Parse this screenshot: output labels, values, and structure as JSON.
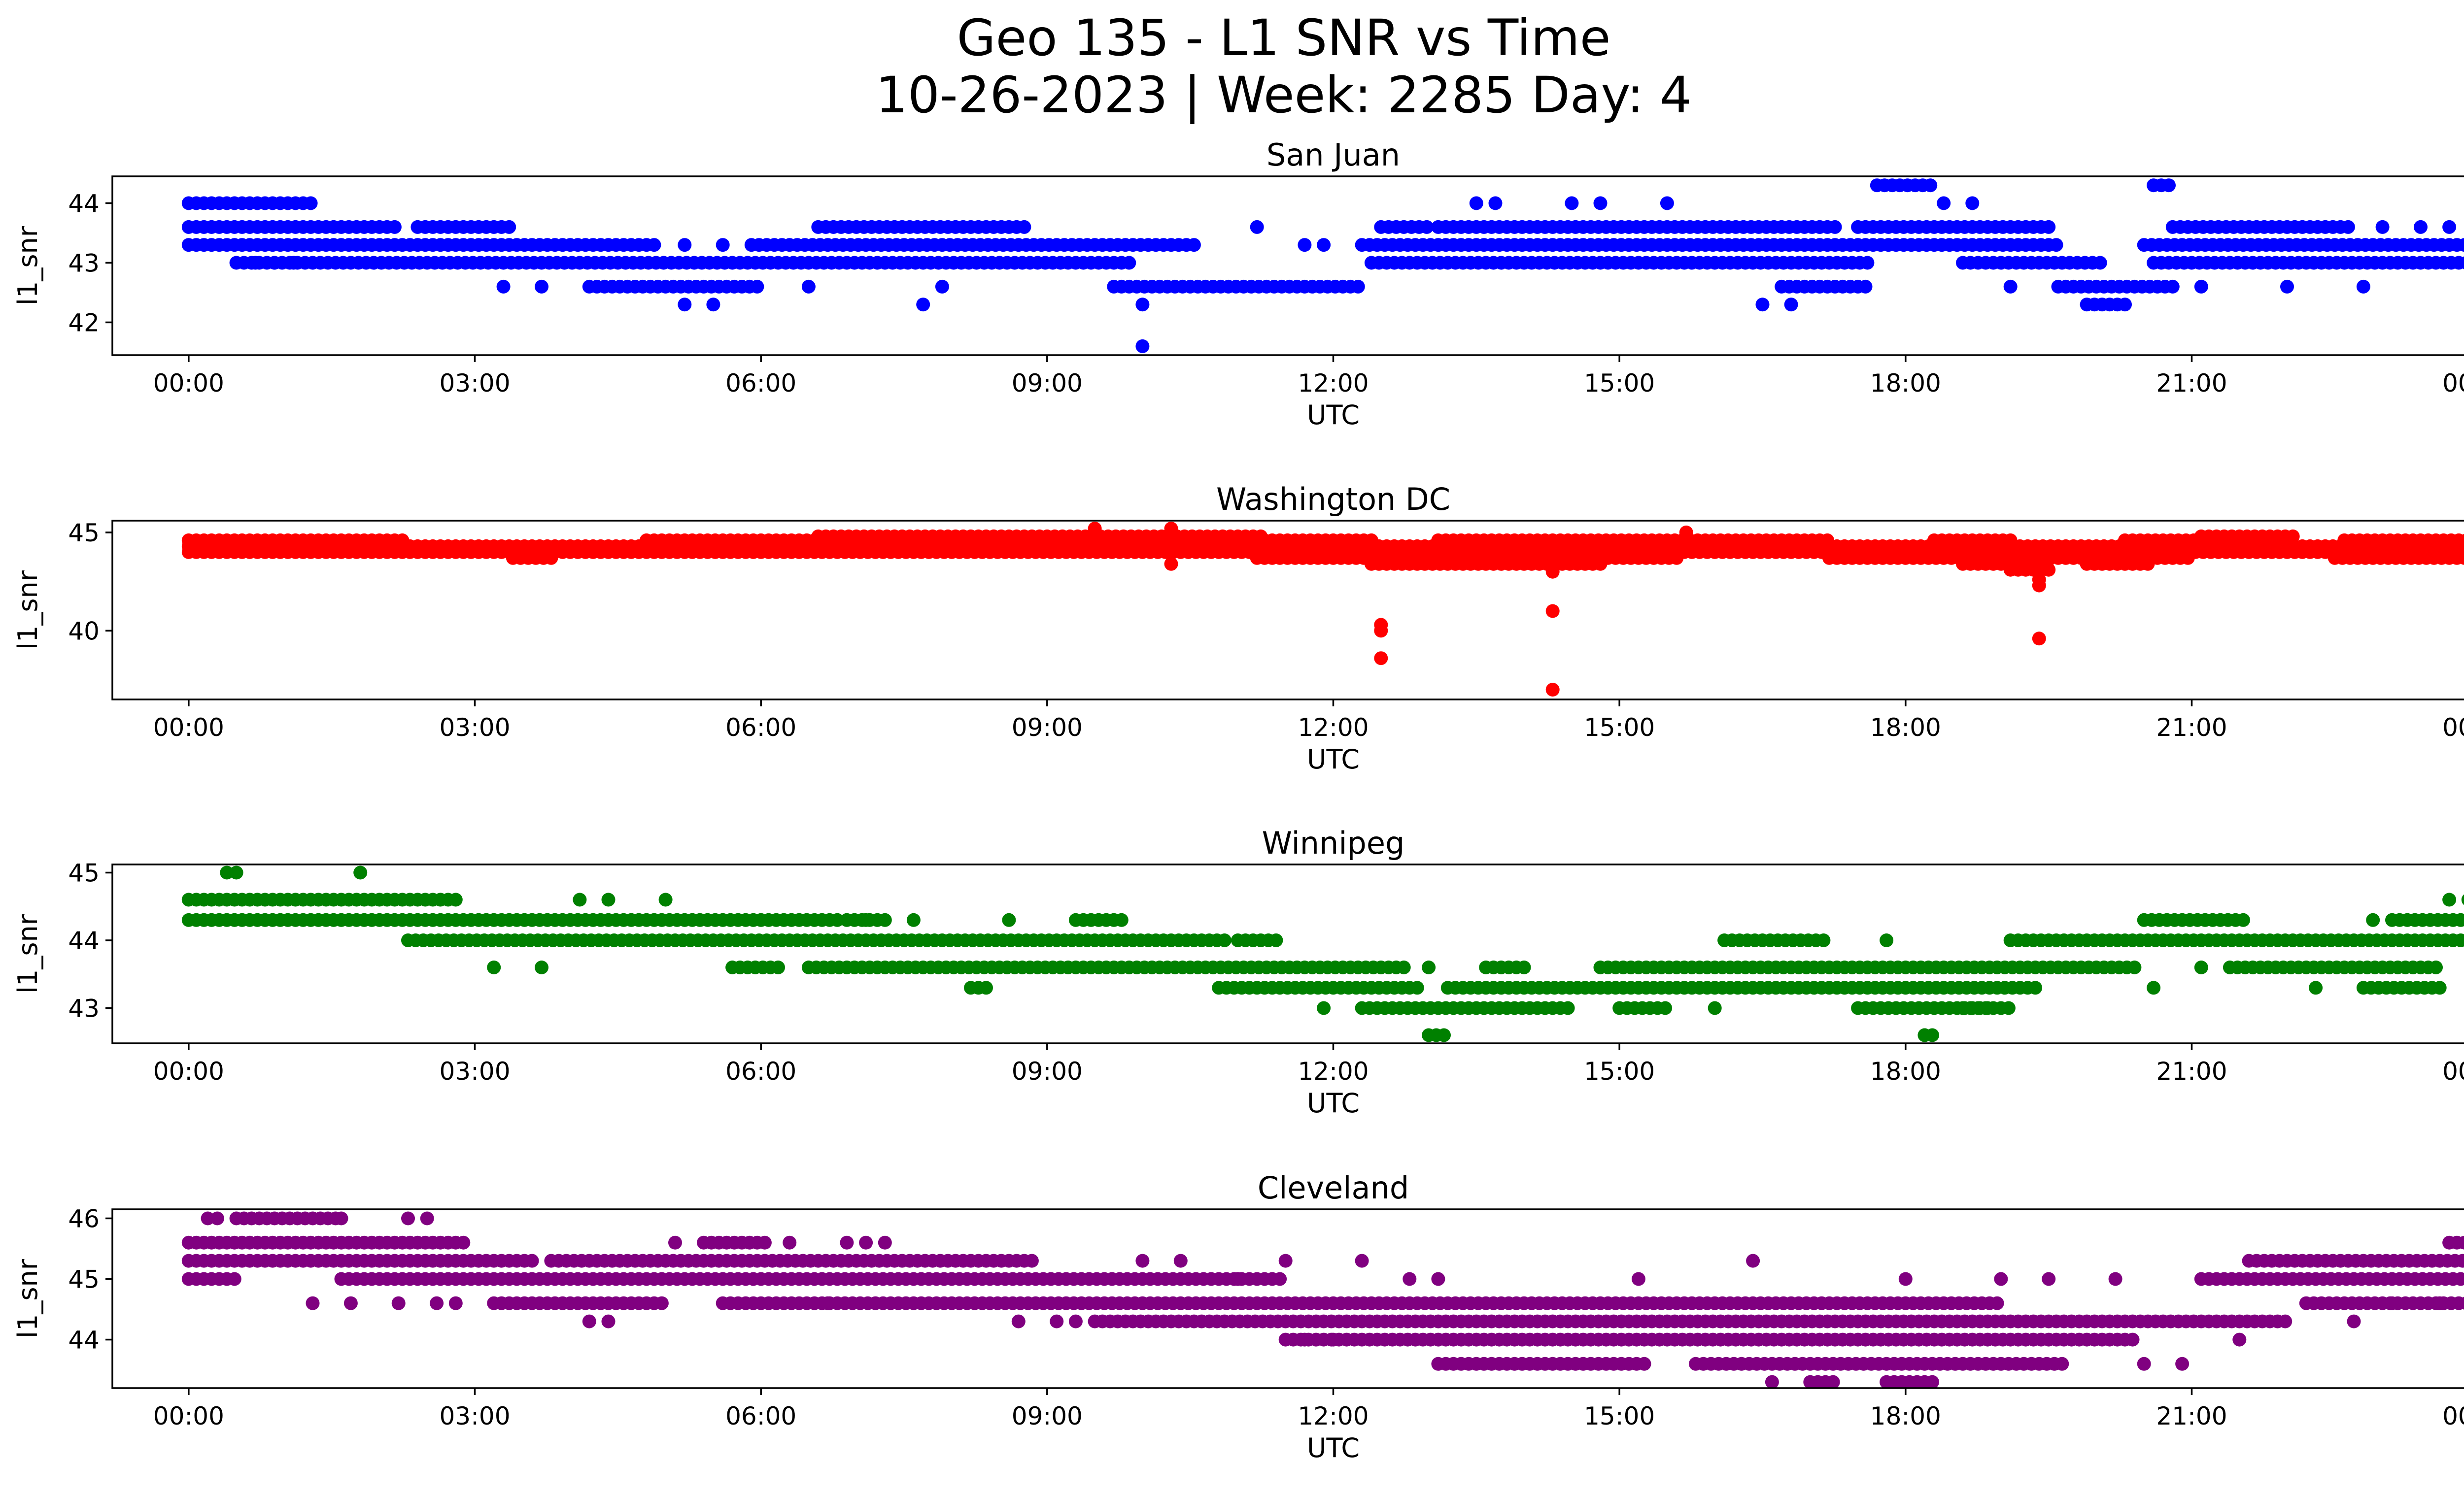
{
  "figure": {
    "title_line1": "Geo 135 - L1 SNR vs Time",
    "title_line2": "10-26-2023 | Week: 2285 Day: 4"
  },
  "chart_data": [
    {
      "type": "scatter",
      "title": "San Juan",
      "xlabel": "UTC",
      "ylabel": "l1_snr",
      "color": "#0000ff",
      "xlim": [
        -0.8,
        24.8
      ],
      "ylim": [
        41.45,
        44.45
      ],
      "xticks": [
        "00:00",
        "03:00",
        "06:00",
        "09:00",
        "12:00",
        "15:00",
        "18:00",
        "21:00",
        "00:00"
      ],
      "yticks": [
        42,
        43,
        44
      ],
      "bands": [
        {
          "y": 44.0,
          "x": [
            [
              0.0,
              1.3
            ]
          ]
        },
        {
          "y": 43.6,
          "x": [
            [
              0.0,
              2.2
            ],
            [
              2.4,
              3.4
            ],
            [
              6.6,
              8.8
            ],
            [
              12.5,
              13.0
            ],
            [
              13.1,
              17.3
            ],
            [
              17.5,
              19.5
            ],
            [
              20.8,
              22.7
            ]
          ]
        },
        {
          "y": 43.3,
          "x": [
            [
              0.0,
              4.9
            ],
            [
              5.9,
              10.6
            ],
            [
              12.3,
              19.6
            ],
            [
              20.5,
              24.0
            ]
          ]
        },
        {
          "y": 43.0,
          "x": [
            [
              0.5,
              9.9
            ],
            [
              12.4,
              17.6
            ],
            [
              18.6,
              20.1
            ],
            [
              20.6,
              24.0
            ]
          ]
        },
        {
          "y": 42.6,
          "x": [
            [
              4.2,
              6.0
            ],
            [
              9.7,
              12.3
            ],
            [
              16.7,
              17.6
            ],
            [
              19.6,
              20.8
            ]
          ]
        },
        {
          "y": 42.3,
          "x": [
            [
              19.9,
              20.3
            ]
          ]
        },
        {
          "y": 44.3,
          "x": [
            [
              17.7,
              18.3
            ],
            [
              20.6,
              20.8
            ]
          ]
        }
      ],
      "points": [
        [
          0.7,
          43.0
        ],
        [
          0.9,
          43.0
        ],
        [
          1.1,
          43.0
        ],
        [
          3.3,
          42.6
        ],
        [
          3.7,
          42.6
        ],
        [
          5.2,
          42.3
        ],
        [
          5.5,
          42.3
        ],
        [
          5.2,
          43.3
        ],
        [
          5.6,
          43.3
        ],
        [
          6.5,
          42.6
        ],
        [
          7.7,
          42.3
        ],
        [
          7.9,
          42.6
        ],
        [
          10.0,
          42.3
        ],
        [
          10.0,
          41.6
        ],
        [
          11.2,
          43.6
        ],
        [
          11.7,
          43.3
        ],
        [
          11.9,
          43.3
        ],
        [
          13.5,
          44.0
        ],
        [
          13.7,
          44.0
        ],
        [
          14.5,
          44.0
        ],
        [
          14.8,
          44.0
        ],
        [
          15.1,
          43.6
        ],
        [
          15.5,
          44.0
        ],
        [
          16.5,
          42.3
        ],
        [
          16.8,
          42.3
        ],
        [
          17.1,
          43.6
        ],
        [
          18.4,
          44.0
        ],
        [
          18.7,
          44.0
        ],
        [
          19.1,
          42.6
        ],
        [
          21.1,
          42.6
        ],
        [
          22.0,
          42.6
        ],
        [
          22.8,
          42.6
        ],
        [
          23.0,
          43.6
        ],
        [
          23.4,
          43.6
        ],
        [
          23.7,
          43.6
        ],
        [
          24.0,
          43.6
        ]
      ]
    },
    {
      "type": "scatter",
      "title": "Washington DC",
      "xlabel": "UTC",
      "ylabel": "l1_snr",
      "color": "#ff0000",
      "xlim": [
        -0.8,
        24.8
      ],
      "ylim": [
        36.5,
        45.6
      ],
      "xticks": [
        "00:00",
        "03:00",
        "06:00",
        "09:00",
        "12:00",
        "15:00",
        "18:00",
        "21:00",
        "00:00"
      ],
      "yticks": [
        40,
        45
      ],
      "bands": [
        {
          "y": 44.6,
          "x": [
            [
              0.0,
              2.3
            ],
            [
              4.8,
              6.6
            ],
            [
              11.2,
              12.4
            ],
            [
              13.1,
              17.2
            ],
            [
              18.3,
              19.1
            ],
            [
              20.3,
              22.0
            ],
            [
              22.6,
              24.0
            ]
          ]
        },
        {
          "y": 44.3,
          "x": [
            [
              0.0,
              24.0
            ]
          ]
        },
        {
          "y": 44.0,
          "x": [
            [
              0.0,
              24.0
            ]
          ]
        },
        {
          "y": 44.8,
          "x": [
            [
              6.6,
              11.3
            ],
            [
              21.1,
              22.1
            ]
          ]
        },
        {
          "y": 43.7,
          "x": [
            [
              3.4,
              3.8
            ],
            [
              11.2,
              15.6
            ],
            [
              17.2,
              21.0
            ],
            [
              22.5,
              24.0
            ]
          ]
        },
        {
          "y": 43.4,
          "x": [
            [
              12.4,
              14.8
            ],
            [
              18.6,
              19.5
            ],
            [
              19.9,
              20.6
            ]
          ]
        },
        {
          "y": 43.1,
          "x": [
            [
              19.1,
              19.5
            ]
          ]
        }
      ],
      "points": [
        [
          9.5,
          45.2
        ],
        [
          10.3,
          45.2
        ],
        [
          15.7,
          45.0
        ],
        [
          10.3,
          43.4
        ],
        [
          10.3,
          44.0
        ],
        [
          12.5,
          40.3
        ],
        [
          12.5,
          40.0
        ],
        [
          12.5,
          38.6
        ],
        [
          14.3,
          43.0
        ],
        [
          14.3,
          41.0
        ],
        [
          14.3,
          37.0
        ],
        [
          19.4,
          42.6
        ],
        [
          19.4,
          42.3
        ],
        [
          19.4,
          39.6
        ]
      ]
    },
    {
      "type": "scatter",
      "title": "Winnipeg",
      "xlabel": "UTC",
      "ylabel": "l1_snr",
      "color": "#008000",
      "xlim": [
        -0.8,
        24.8
      ],
      "ylim": [
        42.48,
        45.12
      ],
      "xticks": [
        "00:00",
        "03:00",
        "06:00",
        "09:00",
        "12:00",
        "15:00",
        "18:00",
        "21:00",
        "00:00"
      ],
      "yticks": [
        43,
        44,
        45
      ],
      "bands": [
        {
          "y": 44.6,
          "x": [
            [
              0.0,
              2.8
            ]
          ]
        },
        {
          "y": 44.3,
          "x": [
            [
              0.0,
              6.8
            ],
            [
              6.9,
              7.3
            ],
            [
              9.3,
              9.8
            ],
            [
              20.5,
              21.6
            ],
            [
              23.1,
              24.0
            ]
          ]
        },
        {
          "y": 44.0,
          "x": [
            [
              2.3,
              10.9
            ],
            [
              11.0,
              11.4
            ],
            [
              16.1,
              17.2
            ],
            [
              19.1,
              24.0
            ]
          ]
        },
        {
          "y": 43.6,
          "x": [
            [
              5.7,
              6.2
            ],
            [
              6.5,
              12.8
            ],
            [
              13.6,
              14.0
            ],
            [
              14.8,
              20.4
            ],
            [
              21.4,
              23.6
            ]
          ]
        },
        {
          "y": 43.3,
          "x": [
            [
              8.2,
              8.4
            ],
            [
              10.8,
              12.9
            ],
            [
              13.2,
              19.4
            ],
            [
              22.8,
              23.6
            ]
          ]
        },
        {
          "y": 43.0,
          "x": [
            [
              12.3,
              14.5
            ],
            [
              15.0,
              15.5
            ],
            [
              17.5,
              18.9
            ],
            [
              18.6,
              19.1
            ]
          ]
        },
        {
          "y": 42.6,
          "x": [
            [
              13.0,
              13.2
            ],
            [
              18.2,
              18.3
            ]
          ]
        }
      ],
      "points": [
        [
          0.4,
          45.0
        ],
        [
          0.5,
          45.0
        ],
        [
          1.8,
          45.0
        ],
        [
          3.2,
          43.6
        ],
        [
          3.7,
          43.6
        ],
        [
          4.1,
          44.6
        ],
        [
          4.4,
          44.6
        ],
        [
          5.0,
          44.6
        ],
        [
          7.1,
          44.3
        ],
        [
          7.6,
          44.3
        ],
        [
          8.6,
          44.3
        ],
        [
          11.9,
          43.0
        ],
        [
          13.0,
          43.6
        ],
        [
          16.0,
          43.0
        ],
        [
          17.8,
          44.0
        ],
        [
          18.2,
          42.6
        ],
        [
          20.6,
          43.3
        ],
        [
          21.1,
          43.6
        ],
        [
          22.3,
          43.3
        ],
        [
          22.9,
          44.3
        ],
        [
          23.7,
          44.6
        ],
        [
          23.9,
          44.6
        ]
      ]
    },
    {
      "type": "scatter",
      "title": "Cleveland",
      "xlabel": "UTC",
      "ylabel": "l1_snr",
      "color": "#800080",
      "xlim": [
        -0.8,
        24.8
      ],
      "ylim": [
        43.2,
        46.15
      ],
      "xticks": [
        "00:00",
        "03:00",
        "06:00",
        "09:00",
        "12:00",
        "15:00",
        "18:00",
        "21:00",
        "00:00"
      ],
      "yticks": [
        44,
        45,
        46
      ],
      "bands": [
        {
          "y": 46.0,
          "x": [
            [
              0.5,
              1.6
            ]
          ]
        },
        {
          "y": 45.6,
          "x": [
            [
              0.0,
              2.9
            ],
            [
              5.4,
              6.1
            ],
            [
              23.7,
              24.0
            ]
          ]
        },
        {
          "y": 45.3,
          "x": [
            [
              0.0,
              3.6
            ],
            [
              3.8,
              8.9
            ],
            [
              21.6,
              24.0
            ]
          ]
        },
        {
          "y": 45.0,
          "x": [
            [
              0.0,
              0.5
            ],
            [
              1.6,
              11.5
            ],
            [
              21.1,
              24.0
            ]
          ]
        },
        {
          "y": 44.6,
          "x": [
            [
              3.2,
              5.0
            ],
            [
              5.6,
              19.0
            ],
            [
              22.2,
              23.9
            ]
          ]
        },
        {
          "y": 44.3,
          "x": [
            [
              9.5,
              22.0
            ]
          ]
        },
        {
          "y": 44.0,
          "x": [
            [
              11.5,
              20.4
            ]
          ]
        },
        {
          "y": 43.6,
          "x": [
            [
              13.1,
              15.3
            ],
            [
              15.8,
              19.7
            ]
          ]
        },
        {
          "y": 43.3,
          "x": [
            [
              17.0,
              17.3
            ],
            [
              17.8,
              18.3
            ]
          ]
        }
      ],
      "points": [
        [
          0.2,
          46.0
        ],
        [
          0.3,
          46.0
        ],
        [
          2.3,
          46.0
        ],
        [
          2.5,
          46.0
        ],
        [
          1.6,
          46.0
        ],
        [
          1.3,
          44.6
        ],
        [
          1.7,
          44.6
        ],
        [
          2.2,
          44.6
        ],
        [
          2.6,
          44.6
        ],
        [
          2.8,
          44.6
        ],
        [
          4.2,
          44.3
        ],
        [
          4.4,
          44.3
        ],
        [
          5.1,
          45.6
        ],
        [
          6.3,
          45.6
        ],
        [
          6.7,
          44.6
        ],
        [
          6.9,
          45.6
        ],
        [
          7.1,
          45.6
        ],
        [
          7.3,
          45.6
        ],
        [
          8.7,
          44.3
        ],
        [
          9.1,
          44.3
        ],
        [
          9.3,
          44.3
        ],
        [
          10.0,
          45.3
        ],
        [
          10.4,
          45.3
        ],
        [
          11.5,
          45.3
        ],
        [
          11.0,
          45.0
        ],
        [
          11.7,
          44.0
        ],
        [
          12.0,
          44.0
        ],
        [
          12.3,
          45.3
        ],
        [
          12.8,
          45.0
        ],
        [
          13.1,
          45.0
        ],
        [
          15.2,
          45.0
        ],
        [
          16.4,
          45.3
        ],
        [
          16.6,
          43.3
        ],
        [
          18.0,
          45.0
        ],
        [
          19.0,
          45.0
        ],
        [
          19.5,
          45.0
        ],
        [
          20.2,
          45.0
        ],
        [
          20.5,
          43.6
        ],
        [
          20.9,
          43.6
        ],
        [
          21.5,
          44.0
        ],
        [
          22.7,
          44.3
        ],
        [
          23.1,
          44.6
        ],
        [
          23.6,
          44.6
        ]
      ]
    }
  ]
}
